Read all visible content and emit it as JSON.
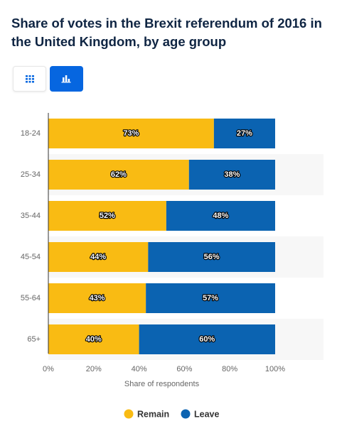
{
  "chart_data": {
    "type": "bar",
    "orientation": "horizontal",
    "stacked": true,
    "title": "Share of votes in the Brexit referendum of 2016 in the United Kingdom, by age group",
    "categories": [
      "18-24",
      "25-34",
      "35-44",
      "45-54",
      "55-64",
      "65+"
    ],
    "series": [
      {
        "name": "Remain",
        "color": "#f9bb13",
        "values": [
          73,
          62,
          52,
          44,
          43,
          40
        ],
        "value_labels": [
          "73%",
          "62%",
          "52%",
          "44%",
          "43%",
          "40%"
        ]
      },
      {
        "name": "Leave",
        "color": "#0b63b1",
        "values": [
          27,
          38,
          48,
          56,
          57,
          60
        ],
        "value_labels": [
          "27%",
          "38%",
          "48%",
          "56%",
          "57%",
          "60%"
        ]
      }
    ],
    "xlim": [
      0,
      100
    ],
    "xticks": [
      {
        "value": 0,
        "label": "0%"
      },
      {
        "value": 20,
        "label": "20%"
      },
      {
        "value": 40,
        "label": "40%"
      },
      {
        "value": 60,
        "label": "60%"
      },
      {
        "value": 80,
        "label": "80%"
      },
      {
        "value": 100,
        "label": "100%"
      }
    ],
    "xlabel": "Share of respondents",
    "grid": false
  }
}
